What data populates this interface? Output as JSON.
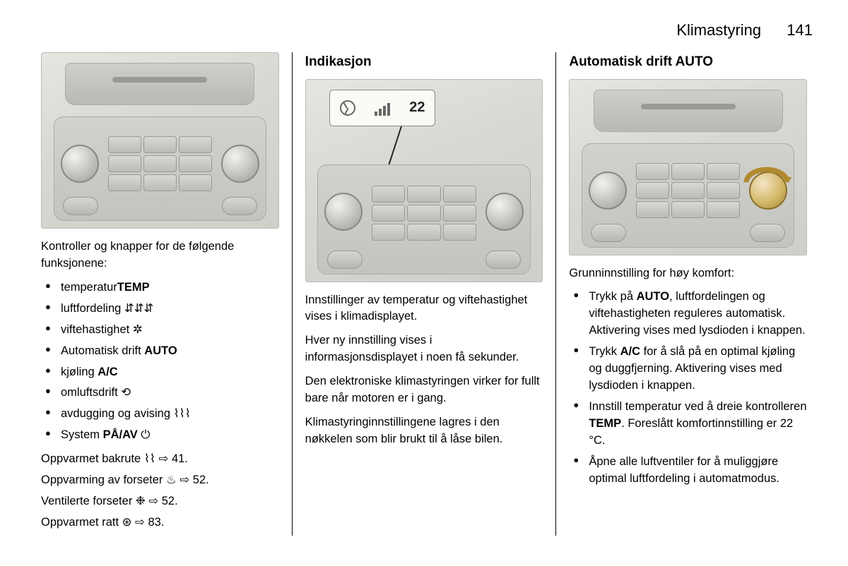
{
  "header": {
    "title": "Klimastyring",
    "pagenum": "141"
  },
  "col1": {
    "intro": "Kontroller og knapper for de følgende funksjonene:",
    "bullets": [
      {
        "pre": "temperatur",
        "bold": "TEMP",
        "post": "",
        "sym": ""
      },
      {
        "pre": "luftfordeling ",
        "bold": "",
        "post": "",
        "sym": "airflow"
      },
      {
        "pre": "viftehastighet ",
        "bold": "",
        "post": "",
        "sym": "fan"
      },
      {
        "pre": "Automatisk drift ",
        "bold": "AUTO",
        "post": "",
        "sym": ""
      },
      {
        "pre": "kjøling ",
        "bold": "A/C",
        "post": "",
        "sym": ""
      },
      {
        "pre": "omluftsdrift ",
        "bold": "",
        "post": "",
        "sym": "recirc"
      },
      {
        "pre": "avdugging og avising ",
        "bold": "",
        "post": "",
        "sym": "defrost"
      },
      {
        "pre": "System ",
        "bold": "PÅ/AV",
        "post": " ",
        "sym": "power"
      }
    ],
    "refs": [
      {
        "text": "Oppvarmet bakrute ",
        "sym": "rear-defrost",
        "page": "41"
      },
      {
        "text": "Oppvarming av forseter ",
        "sym": "seat-heat",
        "page": "52"
      },
      {
        "text": "Ventilerte forseter ",
        "sym": "seat-vent",
        "page": "52"
      },
      {
        "text": "Oppvarmet ratt ",
        "sym": "wheel-heat",
        "page": "83"
      }
    ]
  },
  "col2": {
    "heading": "Indikasjon",
    "callout_value": "22",
    "paras": [
      "Innstillinger av temperatur og viftehastighet vises i klimadisplayet.",
      "Hver ny innstilling vises i informasjonsdisplayet i noen få sekunder.",
      "Den elektroniske klimastyringen virker for fullt bare når motoren er i gang.",
      "Klimastyringinnstillingene lagres i den nøkkelen som blir brukt til å låse bilen."
    ]
  },
  "col3": {
    "heading": "Automatisk drift AUTO",
    "intro": "Grunninnstilling for høy komfort:",
    "bullets": [
      {
        "segments": [
          {
            "t": "Trykk på "
          },
          {
            "t": "AUTO",
            "b": true
          },
          {
            "t": ", luftfordelingen og viftehastigheten reguleres automatisk. Aktivering vises med lysdioden i knappen."
          }
        ]
      },
      {
        "segments": [
          {
            "t": "Trykk "
          },
          {
            "t": "A/C",
            "b": true
          },
          {
            "t": " for å slå på en optimal kjøling og duggfjerning. Aktivering vises med lysdioden i knappen."
          }
        ]
      },
      {
        "segments": [
          {
            "t": "Innstill temperatur ved å dreie kontrolleren "
          },
          {
            "t": "TEMP",
            "b": true
          },
          {
            "t": ". Foreslått komfortinnstilling er 22 °C."
          }
        ]
      },
      {
        "segments": [
          {
            "t": "Åpne alle luftventiler for å muliggjøre optimal luftfordeling i automatmodus."
          }
        ]
      }
    ],
    "arrow_color": "#b08a2e"
  },
  "icons": {
    "airflow": "⇵⇵⇵",
    "fan": "✲",
    "recirc": "⟲",
    "defrost": "⌇⌇⌇",
    "power": "⏻",
    "rear-defrost": "⌇⌇",
    "seat-heat": "♨",
    "seat-vent": "❉",
    "wheel-heat": "⊛",
    "xref": "⇨"
  }
}
